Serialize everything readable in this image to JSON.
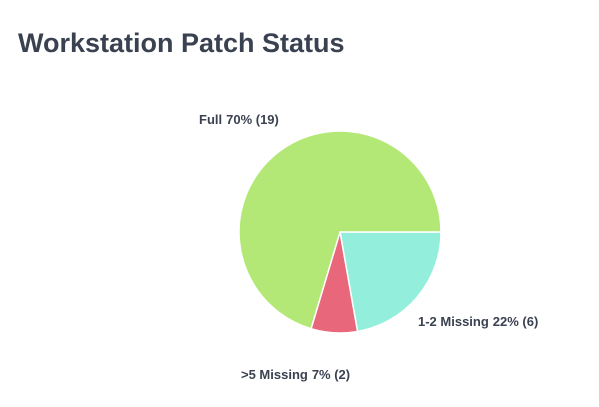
{
  "chart_data": {
    "type": "pie",
    "title": "Workstation Patch Status",
    "categories": [
      "1-2 Missing",
      ">5 Missing",
      "Full"
    ],
    "values": [
      6,
      2,
      19
    ],
    "value_labels": [
      "22% (6)",
      "7% (2)",
      "70% (19)"
    ],
    "colors": [
      "#93efdc",
      "#e8677a",
      "#b3e876"
    ]
  }
}
